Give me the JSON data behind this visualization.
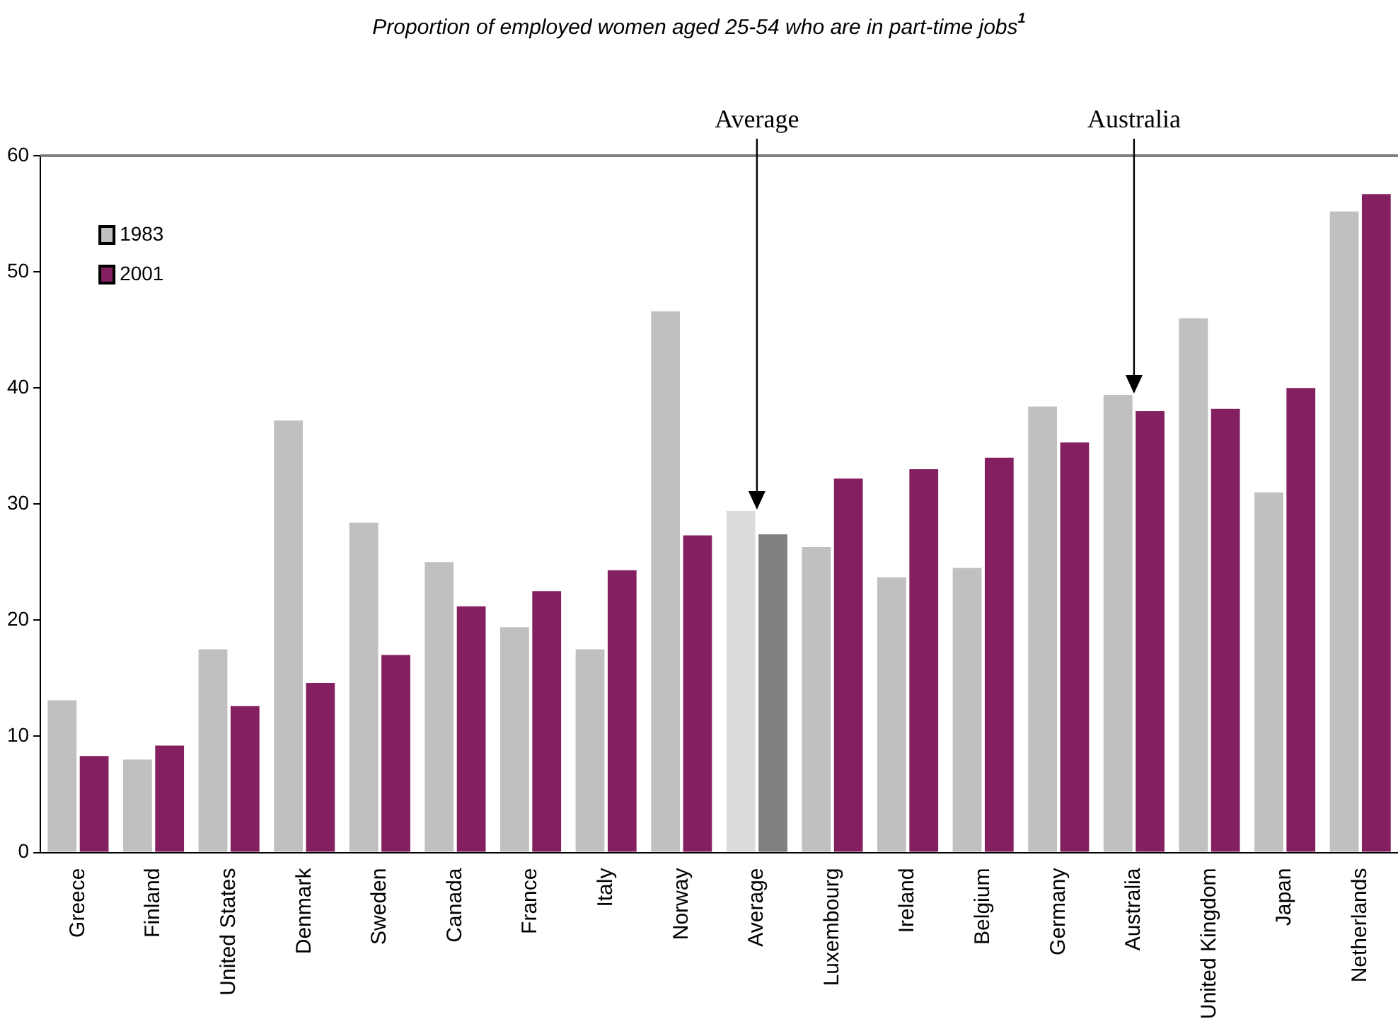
{
  "chart_data": {
    "type": "bar",
    "title": "Proportion of employed women aged 25-54 who are in part-time jobs$^{1}$",
    "categories": [
      "Greece",
      "Finland",
      "United States",
      "Denmark",
      "Sweden",
      "Canada",
      "France",
      "Italy",
      "Norway",
      "Average",
      "Luxembourg",
      "Ireland",
      "Belgium",
      "Germany",
      "Australia",
      "United Kingdom",
      "Japan",
      "Netherlands"
    ],
    "series": [
      {
        "name": "1983",
        "color": "#c0c0c0",
        "colors": [
          "#c0c0c0",
          "#c0c0c0",
          "#c0c0c0",
          "#c0c0c0",
          "#c0c0c0",
          "#c0c0c0",
          "#c0c0c0",
          "#c0c0c0",
          "#c0c0c0",
          "#dcdcdc",
          "#c0c0c0",
          "#c0c0c0",
          "#c0c0c0",
          "#c0c0c0",
          "#c0c0c0",
          "#c0c0c0",
          "#c0c0c0",
          "#c0c0c0"
        ],
        "values": [
          13.1,
          8.0,
          17.5,
          37.2,
          28.4,
          25.0,
          19.4,
          17.5,
          46.6,
          29.4,
          26.3,
          23.7,
          24.5,
          38.4,
          39.4,
          46.0,
          31.0,
          55.2
        ]
      },
      {
        "name": "2001",
        "color": "#852060",
        "colors": [
          "#852060",
          "#852060",
          "#852060",
          "#852060",
          "#852060",
          "#852060",
          "#852060",
          "#852060",
          "#852060",
          "#808080",
          "#852060",
          "#852060",
          "#852060",
          "#852060",
          "#852060",
          "#852060",
          "#852060",
          "#852060"
        ],
        "values": [
          8.3,
          9.2,
          12.6,
          14.6,
          17.0,
          21.2,
          22.5,
          24.3,
          27.3,
          27.4,
          32.2,
          33.0,
          34.0,
          35.3,
          38.0,
          38.2,
          40.0,
          56.7
        ]
      }
    ],
    "ylim": [
      0,
      60
    ],
    "yticks": [
      0,
      10,
      20,
      30,
      40,
      50,
      60
    ],
    "grid": false,
    "legend": "top left",
    "annotations": [
      {
        "text": "Average",
        "x": "Average",
        "y": 29.4
      },
      {
        "text": "Australia",
        "x": "Australia",
        "y": 39.4
      }
    ]
  }
}
